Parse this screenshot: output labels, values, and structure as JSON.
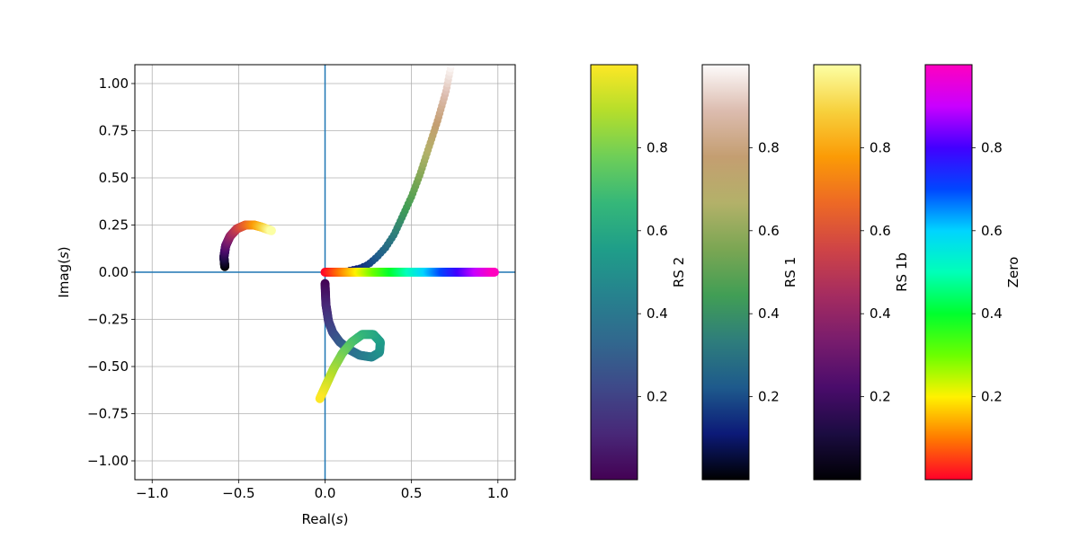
{
  "chart_data": {
    "type": "scatter",
    "title": "",
    "xlabel": "Real(s)",
    "ylabel": "Imag(s)",
    "xlim": [
      -1.1,
      1.1
    ],
    "ylim": [
      -1.1,
      1.1
    ],
    "x_ticks": [
      -1.0,
      -0.5,
      0.0,
      0.5,
      1.0
    ],
    "y_ticks": [
      -1.0,
      -0.75,
      -0.5,
      -0.25,
      0.0,
      0.25,
      0.5,
      0.75,
      1.0
    ],
    "x_tick_labels": [
      "−1.0",
      "−0.5",
      "0.0",
      "0.5",
      "1.0"
    ],
    "y_tick_labels": [
      "−1.00",
      "−0.75",
      "−0.50",
      "−0.25",
      "0.00",
      "0.25",
      "0.50",
      "0.75",
      "1.00"
    ],
    "grid": true,
    "axis_lines": {
      "x": 0,
      "y": 0,
      "color": "#1f77b4"
    },
    "series": [
      {
        "colorbar": "RS 2",
        "colormap": "viridis",
        "points": [
          [
            0.0,
            -0.06
          ],
          [
            0.005,
            -0.17
          ],
          [
            0.02,
            -0.26
          ],
          [
            0.045,
            -0.32
          ],
          [
            0.085,
            -0.37
          ],
          [
            0.14,
            -0.41
          ],
          [
            0.2,
            -0.44
          ],
          [
            0.27,
            -0.45
          ],
          [
            0.315,
            -0.425
          ],
          [
            0.32,
            -0.37
          ],
          [
            0.28,
            -0.33
          ],
          [
            0.215,
            -0.33
          ],
          [
            0.155,
            -0.37
          ],
          [
            0.1,
            -0.43
          ],
          [
            0.05,
            -0.51
          ],
          [
            0.01,
            -0.59
          ],
          [
            -0.03,
            -0.67
          ]
        ]
      },
      {
        "colorbar": "RS 1",
        "colormap": "gist_earth",
        "points": [
          [
            0.0,
            0.0
          ],
          [
            0.05,
            0.0
          ],
          [
            0.1,
            0.0
          ],
          [
            0.15,
            0.01
          ],
          [
            0.2,
            0.02
          ],
          [
            0.25,
            0.04
          ],
          [
            0.3,
            0.08
          ],
          [
            0.35,
            0.13
          ],
          [
            0.4,
            0.2
          ],
          [
            0.45,
            0.3
          ],
          [
            0.5,
            0.4
          ],
          [
            0.55,
            0.52
          ],
          [
            0.6,
            0.66
          ],
          [
            0.65,
            0.8
          ],
          [
            0.7,
            0.96
          ],
          [
            0.73,
            1.1
          ]
        ]
      },
      {
        "colorbar": "RS 1b",
        "colormap": "inferno",
        "points": [
          [
            -0.58,
            0.03
          ],
          [
            -0.585,
            0.08
          ],
          [
            -0.575,
            0.14
          ],
          [
            -0.55,
            0.19
          ],
          [
            -0.51,
            0.23
          ],
          [
            -0.46,
            0.25
          ],
          [
            -0.41,
            0.25
          ],
          [
            -0.37,
            0.24
          ],
          [
            -0.34,
            0.23
          ],
          [
            -0.31,
            0.22
          ]
        ]
      },
      {
        "colorbar": "Zero",
        "colormap": "gist_rainbow",
        "points": [
          [
            0.0,
            0.0
          ],
          [
            0.1,
            0.0
          ],
          [
            0.2,
            0.0
          ],
          [
            0.3,
            0.0
          ],
          [
            0.4,
            0.0
          ],
          [
            0.5,
            0.0
          ],
          [
            0.6,
            0.0
          ],
          [
            0.7,
            0.0
          ],
          [
            0.8,
            0.0
          ],
          [
            0.9,
            0.0
          ],
          [
            0.98,
            0.0
          ]
        ]
      }
    ],
    "colorbars": [
      {
        "label": "RS 2",
        "colormap": "viridis",
        "ticks": [
          0.2,
          0.4,
          0.6,
          0.8
        ],
        "tick_labels": [
          "0.2",
          "0.4",
          "0.6",
          "0.8"
        ],
        "range": [
          0,
          1
        ]
      },
      {
        "label": "RS 1",
        "colormap": "gist_earth",
        "ticks": [
          0.2,
          0.4,
          0.6,
          0.8
        ],
        "tick_labels": [
          "0.2",
          "0.4",
          "0.6",
          "0.8"
        ],
        "range": [
          0,
          1
        ]
      },
      {
        "label": "RS 1b",
        "colormap": "inferno",
        "ticks": [
          0.2,
          0.4,
          0.6,
          0.8
        ],
        "tick_labels": [
          "0.2",
          "0.4",
          "0.6",
          "0.8"
        ],
        "range": [
          0,
          1
        ]
      },
      {
        "label": "Zero",
        "colormap": "gist_rainbow",
        "ticks": [
          0.2,
          0.4,
          0.6,
          0.8
        ],
        "tick_labels": [
          "0.2",
          "0.4",
          "0.6",
          "0.8"
        ],
        "range": [
          0,
          1
        ]
      }
    ],
    "colormaps": {
      "viridis": [
        "#440154",
        "#482878",
        "#3e4989",
        "#31688e",
        "#26828e",
        "#1f9e89",
        "#35b779",
        "#6ece58",
        "#b5de2b",
        "#fde725"
      ],
      "gist_earth": [
        "#000000",
        "#0c1a78",
        "#1e5a8c",
        "#2e7d7c",
        "#419e55",
        "#7ba653",
        "#b3b169",
        "#c49e71",
        "#dcbcaf",
        "#fdfbfb"
      ],
      "inferno": [
        "#000004",
        "#1b0c41",
        "#4a0c6b",
        "#781c6d",
        "#a52c60",
        "#cf4446",
        "#ed6925",
        "#fb9b06",
        "#f7d13d",
        "#fcffa4"
      ],
      "gist_rainbow": [
        "#ff0029",
        "#ff7a00",
        "#fff200",
        "#6bff00",
        "#00ff2e",
        "#00ffb8",
        "#00d4ff",
        "#0046ff",
        "#4200ff",
        "#c900ff",
        "#ff00bf"
      ]
    }
  }
}
